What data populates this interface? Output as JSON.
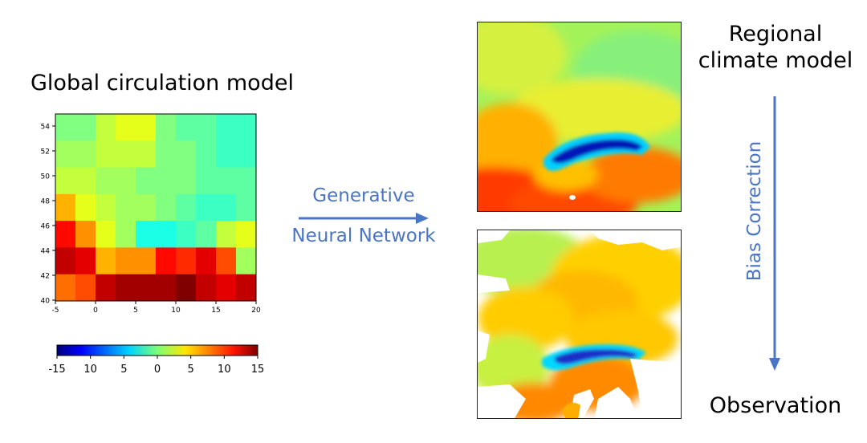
{
  "titles": {
    "gcm": "Global circulation model",
    "rcm_line1": "Regional",
    "rcm_line2": "climate model",
    "observation": "Observation"
  },
  "arrows": {
    "generative_line1": "Generative",
    "generative_line2": "Neural Network",
    "bias_correction": "Bias Correction",
    "color": "#4a74c4"
  },
  "gcm_heatmap": {
    "x_ticks": [
      "-5",
      "0",
      "5",
      "10",
      "15",
      "20"
    ],
    "y_ticks": [
      "54",
      "52",
      "50",
      "48",
      "46",
      "44",
      "42",
      "40"
    ],
    "grid_values": [
      [
        0,
        0,
        2,
        3,
        3,
        0,
        -1,
        -1,
        -2,
        -2
      ],
      [
        1,
        1,
        2,
        2,
        2,
        0,
        0,
        -1,
        -2,
        -2
      ],
      [
        2,
        2,
        1,
        1,
        0,
        0,
        0,
        -1,
        -1,
        -1
      ],
      [
        6,
        3,
        2,
        1,
        1,
        0,
        -1,
        -2,
        -2,
        -1
      ],
      [
        11,
        7,
        3,
        1,
        -3,
        -3,
        -2,
        -1,
        2,
        3
      ],
      [
        13,
        12,
        6,
        7,
        7,
        11,
        10,
        12,
        9,
        1
      ],
      [
        8,
        9,
        13,
        14,
        14,
        14,
        15,
        13,
        12,
        13
      ]
    ]
  },
  "colorbar": {
    "tick_labels": [
      "-15",
      "10",
      "5",
      "0",
      "5",
      "10",
      "15"
    ]
  },
  "icons": {
    "right_arrow": "arrow-right-icon",
    "down_arrow": "arrow-down-icon"
  }
}
